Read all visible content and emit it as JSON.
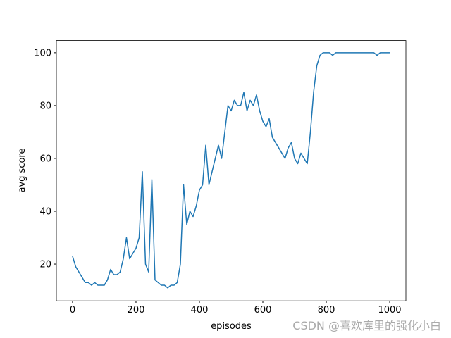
{
  "chart_data": {
    "type": "line",
    "x_label": "episodes",
    "y_label": "avg score",
    "x": [
      0,
      10,
      20,
      30,
      40,
      50,
      60,
      70,
      80,
      90,
      100,
      110,
      120,
      130,
      140,
      150,
      160,
      170,
      180,
      190,
      200,
      210,
      220,
      230,
      240,
      250,
      260,
      270,
      280,
      290,
      300,
      310,
      320,
      330,
      340,
      350,
      360,
      370,
      380,
      390,
      400,
      410,
      420,
      430,
      440,
      450,
      460,
      470,
      480,
      490,
      500,
      510,
      520,
      530,
      540,
      550,
      560,
      570,
      580,
      590,
      600,
      610,
      620,
      630,
      640,
      650,
      660,
      670,
      680,
      690,
      700,
      710,
      720,
      730,
      740,
      750,
      760,
      770,
      780,
      790,
      800,
      810,
      820,
      830,
      840,
      850,
      860,
      870,
      880,
      890,
      900,
      910,
      920,
      930,
      940,
      950,
      960,
      970,
      980,
      990,
      1000
    ],
    "series": [
      {
        "name": "avg score",
        "color": "#1f77b4",
        "values": [
          23,
          19,
          17,
          15,
          13,
          13,
          12,
          13,
          12,
          12,
          12,
          14,
          18,
          16,
          16,
          17,
          22,
          30,
          22,
          24,
          26,
          30,
          55,
          20,
          17,
          52,
          14,
          13,
          12,
          12,
          11,
          12,
          12,
          13,
          20,
          50,
          35,
          40,
          38,
          42,
          48,
          50,
          65,
          50,
          55,
          60,
          65,
          60,
          70,
          80,
          78,
          82,
          80,
          80,
          85,
          78,
          82,
          80,
          84,
          78,
          74,
          72,
          75,
          68,
          66,
          64,
          62,
          60,
          64,
          66,
          60,
          58,
          62,
          60,
          58,
          70,
          85,
          95,
          99,
          100,
          100,
          100,
          99,
          100,
          100,
          100,
          100,
          100,
          100,
          100,
          100,
          100,
          100,
          100,
          100,
          100,
          99,
          100,
          100,
          100,
          100
        ]
      }
    ],
    "xlim": [
      -51,
      1051
    ],
    "ylim": [
      6.1,
      104.6
    ],
    "xticks": [
      0,
      200,
      400,
      600,
      800,
      1000
    ],
    "yticks": [
      20,
      40,
      60,
      80,
      100
    ],
    "watermark": "CSDN @喜欢库里的强化小白"
  }
}
